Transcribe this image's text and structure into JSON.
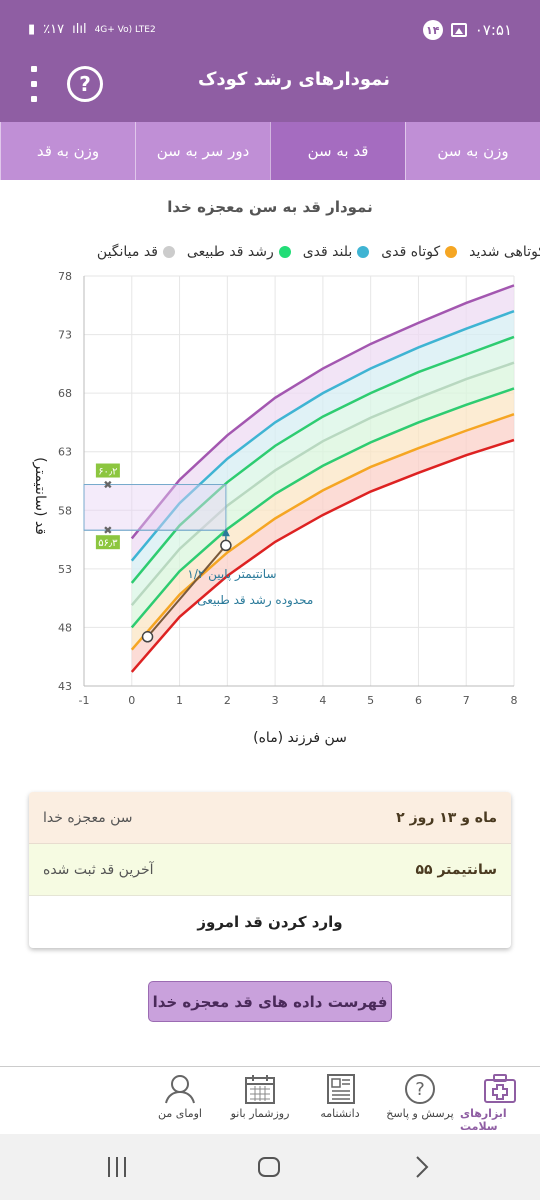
{
  "status_bar": {
    "time": "۰۷:۵۱",
    "notification_count": "۱۴",
    "battery": "٪۱۷",
    "network": "4G+ Vo) LTE2"
  },
  "header": {
    "title": "نمودارهای رشد کودک",
    "help_symbol": "?"
  },
  "tabs": [
    {
      "label": "وزن به سن",
      "active": false
    },
    {
      "label": "قد به سن",
      "active": true
    },
    {
      "label": "دور سر به سن",
      "active": false
    },
    {
      "label": "وزن به قد",
      "active": false
    }
  ],
  "chart_title": "نمودار قد به سن معجزه خدا",
  "legend": [
    {
      "label": "کوتاهی شدید",
      "color": "#a357b0"
    },
    {
      "label": "کوتاه قدی",
      "color": "#f5a623"
    },
    {
      "label": "بلند قدی",
      "color": "#3fb4d3"
    },
    {
      "label": "رشد قد طبیعی",
      "color": "#22dd77"
    },
    {
      "label": "قد میانگین",
      "color": "#cccccc"
    }
  ],
  "chart_data": {
    "type": "line",
    "xlabel": "سن فرزند (ماه)",
    "ylabel": "قد (سانتیمتر)",
    "xlim": [
      -1,
      8
    ],
    "ylim": [
      43,
      78
    ],
    "x_ticks": [
      -1,
      0,
      1,
      2,
      3,
      4,
      5,
      6,
      7,
      8
    ],
    "y_ticks": [
      43,
      48,
      53,
      58,
      63,
      68,
      73,
      78
    ],
    "x": [
      0,
      1,
      2,
      3,
      4,
      5,
      6,
      7,
      8
    ],
    "series": [
      {
        "color": "#dd2222",
        "values": [
          44.2,
          48.9,
          52.4,
          55.3,
          57.6,
          59.6,
          61.2,
          62.7,
          64.0
        ]
      },
      {
        "color": "#f5a623",
        "values": [
          46.1,
          50.8,
          54.4,
          57.3,
          59.7,
          61.7,
          63.3,
          64.8,
          66.2
        ]
      },
      {
        "color": "#2ecc71",
        "values": [
          48.0,
          52.8,
          56.4,
          59.4,
          61.8,
          63.8,
          65.5,
          67.0,
          68.4
        ]
      },
      {
        "color": "#b8d8c0",
        "values": [
          49.9,
          54.7,
          58.4,
          61.4,
          63.9,
          65.9,
          67.6,
          69.2,
          70.6
        ]
      },
      {
        "color": "#2ecc71",
        "values": [
          51.8,
          56.7,
          60.4,
          63.5,
          66.0,
          68.0,
          69.8,
          71.3,
          72.8
        ]
      },
      {
        "color": "#3fb4d3",
        "values": [
          53.7,
          58.6,
          62.4,
          65.5,
          68.0,
          70.1,
          71.9,
          73.5,
          75.0
        ]
      },
      {
        "color": "#a357b0",
        "values": [
          55.6,
          60.6,
          64.4,
          67.6,
          70.1,
          72.2,
          74.0,
          75.7,
          77.2
        ]
      }
    ],
    "child_points": [
      {
        "x": 0.33,
        "y": 47.2
      },
      {
        "x": 1.97,
        "y": 55.0
      }
    ],
    "target_point": {
      "x": 1.97,
      "y": 56.3
    },
    "range_low": "۵۶٫۳",
    "range_high": "۶۰٫۲",
    "range_values": [
      56.3,
      60.2
    ],
    "annotation_line1": "۱/۲ سانتیمتر پایین",
    "annotation_line2": "محدوده رشد قد طبیعی"
  },
  "info": {
    "age_label": "سن معجزه خدا",
    "age_value": "۲ ماه و ۱۳ روز",
    "height_label": "آخرین قد ثبت شده",
    "height_value": "۵۵ سانتیمتر",
    "enter_height": "وارد کردن قد امروز"
  },
  "list_button": "فهرست داده های قد معجزه خدا",
  "bottom_nav": [
    {
      "label": "ابزارهای سلامت",
      "icon": "medical-kit-icon",
      "active": true
    },
    {
      "label": "پرسش و پاسخ",
      "icon": "question-icon",
      "active": false
    },
    {
      "label": "دانشنامه",
      "icon": "newspaper-icon",
      "active": false
    },
    {
      "label": "روزشمار بانو",
      "icon": "calendar-icon",
      "active": false
    },
    {
      "label": "اومای من",
      "icon": "user-icon",
      "active": false
    }
  ]
}
